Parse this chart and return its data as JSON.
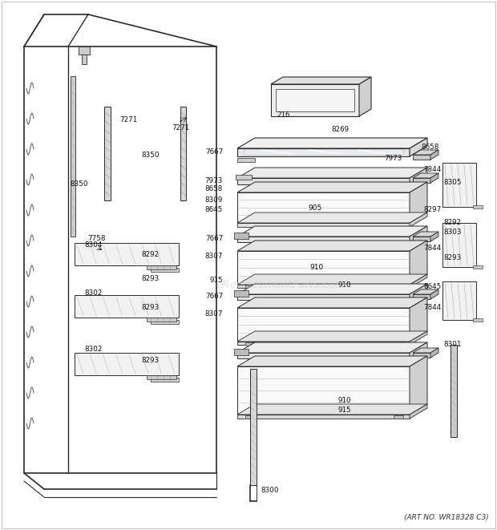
{
  "background_color": "#ffffff",
  "line_color": "#2a2a2a",
  "text_color": "#111111",
  "art_no": "(ART NO. WR18328 C3)",
  "fig_width": 6.2,
  "fig_height": 6.61,
  "dpi": 100
}
